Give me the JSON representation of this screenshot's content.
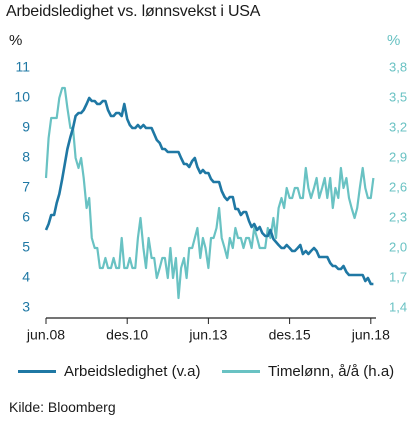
{
  "title": "Arbeidsledighet vs. lønnsvekst i USA",
  "unit_left": "%",
  "unit_right": "%",
  "source": "Kilde: Bloomberg",
  "colors": {
    "unemployment": "#1f78a4",
    "wages": "#69c2c3"
  },
  "legend": {
    "series1": "Arbeidsledighet (v.a)",
    "series2": "Timelønn, å/å (h.a)"
  },
  "chart_data": {
    "type": "line",
    "title": "Arbeidsledighet vs. lønnsvekst i USA",
    "x_tick_labels": [
      "jun.08",
      "des.10",
      "jun.13",
      "des.15",
      "jun.18"
    ],
    "x_ticks_decimal_year": [
      2008.42,
      2010.92,
      2013.42,
      2015.92,
      2018.42
    ],
    "x_range": [
      2008.42,
      2018.58
    ],
    "y_left": {
      "label": "%",
      "range": [
        3,
        11
      ],
      "ticks": [
        3,
        4,
        5,
        6,
        7,
        8,
        9,
        10,
        11
      ]
    },
    "y_right": {
      "label": "%",
      "range": [
        1.4,
        3.8
      ],
      "ticks": [
        "1,4",
        "1,7",
        "2,0",
        "2,3",
        "2,6",
        "2,9",
        "3,2",
        "3,5",
        "3,8"
      ]
    },
    "grid": false,
    "legend_position": "bottom",
    "series": [
      {
        "name": "Arbeidsledighet (v.a)",
        "axis": "left",
        "x": [
          2008.42,
          2008.5,
          2008.58,
          2008.67,
          2008.75,
          2008.83,
          2008.92,
          2009.0,
          2009.08,
          2009.17,
          2009.25,
          2009.33,
          2009.42,
          2009.5,
          2009.58,
          2009.67,
          2009.75,
          2009.83,
          2009.92,
          2010.0,
          2010.08,
          2010.17,
          2010.25,
          2010.33,
          2010.42,
          2010.5,
          2010.58,
          2010.67,
          2010.75,
          2010.83,
          2010.92,
          2011.0,
          2011.08,
          2011.17,
          2011.25,
          2011.33,
          2011.42,
          2011.5,
          2011.58,
          2011.67,
          2011.75,
          2011.83,
          2011.92,
          2012.0,
          2012.08,
          2012.17,
          2012.25,
          2012.33,
          2012.42,
          2012.5,
          2012.58,
          2012.67,
          2012.75,
          2012.83,
          2012.92,
          2013.0,
          2013.08,
          2013.17,
          2013.25,
          2013.33,
          2013.42,
          2013.5,
          2013.58,
          2013.67,
          2013.75,
          2013.83,
          2013.92,
          2014.0,
          2014.08,
          2014.17,
          2014.25,
          2014.33,
          2014.42,
          2014.5,
          2014.58,
          2014.67,
          2014.75,
          2014.83,
          2014.92,
          2015.0,
          2015.08,
          2015.17,
          2015.25,
          2015.33,
          2015.42,
          2015.5,
          2015.58,
          2015.67,
          2015.75,
          2015.83,
          2015.92,
          2016.0,
          2016.08,
          2016.17,
          2016.25,
          2016.33,
          2016.42,
          2016.5,
          2016.58,
          2016.67,
          2016.75,
          2016.83,
          2016.92,
          2017.0,
          2017.08,
          2017.17,
          2017.25,
          2017.33,
          2017.42,
          2017.5,
          2017.58,
          2017.67,
          2017.75,
          2017.83,
          2017.92,
          2018.0,
          2018.08,
          2018.17,
          2018.25,
          2018.33,
          2018.42,
          2018.5
        ],
        "values": [
          5.6,
          5.8,
          6.1,
          6.1,
          6.5,
          6.8,
          7.3,
          7.8,
          8.3,
          8.7,
          9.0,
          9.4,
          9.5,
          9.5,
          9.6,
          9.8,
          10.0,
          9.9,
          9.9,
          9.8,
          9.8,
          9.9,
          9.9,
          9.6,
          9.4,
          9.4,
          9.5,
          9.5,
          9.4,
          9.8,
          9.3,
          9.1,
          9.0,
          9.0,
          9.1,
          9.0,
          9.1,
          9.0,
          9.0,
          9.0,
          8.8,
          8.6,
          8.5,
          8.3,
          8.3,
          8.2,
          8.2,
          8.2,
          8.2,
          8.2,
          8.0,
          7.8,
          7.8,
          7.7,
          7.9,
          8.0,
          7.7,
          7.5,
          7.6,
          7.5,
          7.5,
          7.3,
          7.2,
          7.2,
          7.2,
          6.9,
          6.7,
          6.6,
          6.7,
          6.7,
          6.3,
          6.3,
          6.1,
          6.2,
          6.2,
          5.9,
          5.7,
          5.8,
          5.6,
          5.7,
          5.5,
          5.4,
          5.4,
          5.6,
          5.3,
          5.2,
          5.1,
          5.0,
          5.0,
          5.1,
          5.0,
          4.9,
          4.9,
          5.0,
          5.1,
          4.8,
          4.9,
          4.8,
          4.9,
          5.0,
          4.9,
          4.7,
          4.7,
          4.7,
          4.7,
          4.5,
          4.4,
          4.4,
          4.3,
          4.3,
          4.4,
          4.2,
          4.1,
          4.1,
          4.1,
          4.1,
          4.1,
          4.1,
          3.9,
          4.0,
          3.8,
          3.8
        ]
      },
      {
        "name": "Timelønn, å/å (h.a)",
        "axis": "right",
        "x": [
          2008.42,
          2008.5,
          2008.58,
          2008.67,
          2008.75,
          2008.83,
          2008.92,
          2009.0,
          2009.08,
          2009.17,
          2009.25,
          2009.33,
          2009.42,
          2009.5,
          2009.58,
          2009.67,
          2009.75,
          2009.83,
          2009.92,
          2010.0,
          2010.08,
          2010.17,
          2010.25,
          2010.33,
          2010.42,
          2010.5,
          2010.58,
          2010.67,
          2010.75,
          2010.83,
          2010.92,
          2011.0,
          2011.08,
          2011.17,
          2011.25,
          2011.33,
          2011.42,
          2011.5,
          2011.58,
          2011.67,
          2011.75,
          2011.83,
          2011.92,
          2012.0,
          2012.08,
          2012.17,
          2012.25,
          2012.33,
          2012.42,
          2012.5,
          2012.58,
          2012.67,
          2012.75,
          2012.83,
          2012.92,
          2013.0,
          2013.08,
          2013.17,
          2013.25,
          2013.33,
          2013.42,
          2013.5,
          2013.58,
          2013.67,
          2013.75,
          2013.83,
          2013.92,
          2014.0,
          2014.08,
          2014.17,
          2014.25,
          2014.33,
          2014.42,
          2014.5,
          2014.58,
          2014.67,
          2014.75,
          2014.83,
          2014.92,
          2015.0,
          2015.08,
          2015.17,
          2015.25,
          2015.33,
          2015.42,
          2015.5,
          2015.58,
          2015.67,
          2015.75,
          2015.83,
          2015.92,
          2016.0,
          2016.08,
          2016.17,
          2016.25,
          2016.33,
          2016.42,
          2016.5,
          2016.58,
          2016.67,
          2016.75,
          2016.83,
          2016.92,
          2017.0,
          2017.08,
          2017.17,
          2017.25,
          2017.33,
          2017.42,
          2017.5,
          2017.58,
          2017.67,
          2017.75,
          2017.83,
          2017.92,
          2018.0,
          2018.08,
          2018.17,
          2018.25,
          2018.33,
          2018.42,
          2018.5
        ],
        "values": [
          2.7,
          3.1,
          3.3,
          3.3,
          3.3,
          3.5,
          3.6,
          3.6,
          3.4,
          3.2,
          3.2,
          2.9,
          2.8,
          2.9,
          2.7,
          2.4,
          2.5,
          2.1,
          2.0,
          2.0,
          1.8,
          1.8,
          1.9,
          1.8,
          1.8,
          1.9,
          1.8,
          1.8,
          2.1,
          1.8,
          1.8,
          1.9,
          1.8,
          1.8,
          2.1,
          2.3,
          2.0,
          1.8,
          2.1,
          1.9,
          1.9,
          1.7,
          1.8,
          1.9,
          1.9,
          1.7,
          2.0,
          1.7,
          1.9,
          1.5,
          1.8,
          1.9,
          1.7,
          2.0,
          2.0,
          2.1,
          2.2,
          1.9,
          2.1,
          2.0,
          1.8,
          2.1,
          2.1,
          2.2,
          2.4,
          2.1,
          2.0,
          1.9,
          2.1,
          2.0,
          2.2,
          2.1,
          2.1,
          2.0,
          2.1,
          2.1,
          2.0,
          2.2,
          2.1,
          2.0,
          2.0,
          2.0,
          2.2,
          2.1,
          2.3,
          2.1,
          2.4,
          2.5,
          2.4,
          2.6,
          2.5,
          2.5,
          2.6,
          2.6,
          2.5,
          2.5,
          2.8,
          2.6,
          2.5,
          2.6,
          2.7,
          2.5,
          2.6,
          2.7,
          2.5,
          2.7,
          2.4,
          2.6,
          2.5,
          2.8,
          2.6,
          2.7,
          2.5,
          2.4,
          2.3,
          2.4,
          2.6,
          2.8,
          2.6,
          2.5,
          2.5,
          2.7
        ]
      }
    ]
  }
}
